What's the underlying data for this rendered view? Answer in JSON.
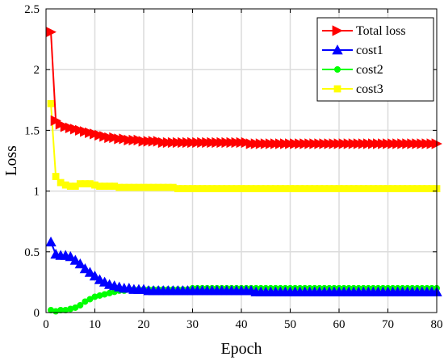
{
  "chart_data": {
    "type": "line",
    "xlabel": "Epoch",
    "ylabel": "Loss",
    "xlim": [
      0,
      80
    ],
    "ylim": [
      0,
      2.5
    ],
    "xticks": [
      "0",
      "10",
      "20",
      "30",
      "40",
      "50",
      "60",
      "70",
      "80"
    ],
    "yticks": [
      "0",
      "0.5",
      "1",
      "1.5",
      "2",
      "2.5"
    ],
    "grid": true,
    "legend_position": "top-right",
    "series": [
      {
        "name": "Total loss",
        "color": "#ff0000",
        "marker": "triangle-right",
        "x": [
          1,
          2,
          3,
          4,
          5,
          6,
          7,
          8,
          9,
          10,
          11,
          12,
          13,
          14,
          15,
          16,
          17,
          18,
          19,
          20,
          21,
          22,
          23,
          24,
          25,
          26,
          27,
          28,
          29,
          30,
          31,
          32,
          33,
          34,
          35,
          36,
          37,
          38,
          39,
          40,
          41,
          42,
          43,
          44,
          45,
          46,
          47,
          48,
          49,
          50,
          51,
          52,
          53,
          54,
          55,
          56,
          57,
          58,
          59,
          60,
          61,
          62,
          63,
          64,
          65,
          66,
          67,
          68,
          69,
          70,
          71,
          72,
          73,
          74,
          75,
          76,
          77,
          78,
          79,
          80
        ],
        "values": [
          2.31,
          1.58,
          1.55,
          1.53,
          1.52,
          1.51,
          1.5,
          1.49,
          1.48,
          1.47,
          1.46,
          1.45,
          1.44,
          1.44,
          1.43,
          1.43,
          1.42,
          1.42,
          1.42,
          1.41,
          1.41,
          1.41,
          1.41,
          1.4,
          1.4,
          1.4,
          1.4,
          1.4,
          1.4,
          1.4,
          1.4,
          1.4,
          1.4,
          1.4,
          1.4,
          1.4,
          1.4,
          1.4,
          1.4,
          1.4,
          1.4,
          1.39,
          1.39,
          1.39,
          1.39,
          1.39,
          1.39,
          1.39,
          1.39,
          1.39,
          1.39,
          1.39,
          1.39,
          1.39,
          1.39,
          1.39,
          1.39,
          1.39,
          1.39,
          1.39,
          1.39,
          1.39,
          1.39,
          1.39,
          1.39,
          1.39,
          1.39,
          1.39,
          1.39,
          1.39,
          1.39,
          1.39,
          1.39,
          1.39,
          1.39,
          1.39,
          1.39,
          1.39,
          1.39,
          1.39
        ]
      },
      {
        "name": "cost1",
        "color": "#0000ff",
        "marker": "triangle-up",
        "x": [
          1,
          2,
          3,
          4,
          5,
          6,
          7,
          8,
          9,
          10,
          11,
          12,
          13,
          14,
          15,
          16,
          17,
          18,
          19,
          20,
          21,
          22,
          23,
          24,
          25,
          26,
          27,
          28,
          29,
          30,
          31,
          32,
          33,
          34,
          35,
          36,
          37,
          38,
          39,
          40,
          41,
          42,
          43,
          44,
          45,
          46,
          47,
          48,
          49,
          50,
          51,
          52,
          53,
          54,
          55,
          56,
          57,
          58,
          59,
          60,
          61,
          62,
          63,
          64,
          65,
          66,
          67,
          68,
          69,
          70,
          71,
          72,
          73,
          74,
          75,
          76,
          77,
          78,
          79,
          80
        ],
        "values": [
          0.58,
          0.48,
          0.47,
          0.47,
          0.46,
          0.43,
          0.4,
          0.36,
          0.33,
          0.3,
          0.27,
          0.25,
          0.23,
          0.22,
          0.21,
          0.2,
          0.2,
          0.19,
          0.19,
          0.19,
          0.18,
          0.18,
          0.18,
          0.18,
          0.18,
          0.18,
          0.18,
          0.18,
          0.18,
          0.18,
          0.18,
          0.18,
          0.18,
          0.18,
          0.18,
          0.18,
          0.18,
          0.18,
          0.18,
          0.18,
          0.18,
          0.18,
          0.17,
          0.17,
          0.17,
          0.17,
          0.17,
          0.17,
          0.17,
          0.17,
          0.17,
          0.17,
          0.17,
          0.17,
          0.17,
          0.17,
          0.17,
          0.17,
          0.17,
          0.17,
          0.17,
          0.17,
          0.17,
          0.17,
          0.17,
          0.17,
          0.17,
          0.17,
          0.17,
          0.17,
          0.17,
          0.17,
          0.17,
          0.17,
          0.17,
          0.17,
          0.17,
          0.17,
          0.17,
          0.17
        ]
      },
      {
        "name": "cost2",
        "color": "#00ff00",
        "marker": "circle",
        "x": [
          1,
          2,
          3,
          4,
          5,
          6,
          7,
          8,
          9,
          10,
          11,
          12,
          13,
          14,
          15,
          16,
          17,
          18,
          19,
          20,
          21,
          22,
          23,
          24,
          25,
          26,
          27,
          28,
          29,
          30,
          31,
          32,
          33,
          34,
          35,
          36,
          37,
          38,
          39,
          40,
          41,
          42,
          43,
          44,
          45,
          46,
          47,
          48,
          49,
          50,
          51,
          52,
          53,
          54,
          55,
          56,
          57,
          58,
          59,
          60,
          61,
          62,
          63,
          64,
          65,
          66,
          67,
          68,
          69,
          70,
          71,
          72,
          73,
          74,
          75,
          76,
          77,
          78,
          79,
          80
        ],
        "values": [
          0.02,
          0.01,
          0.02,
          0.02,
          0.03,
          0.04,
          0.06,
          0.09,
          0.11,
          0.13,
          0.14,
          0.15,
          0.16,
          0.17,
          0.18,
          0.18,
          0.19,
          0.19,
          0.19,
          0.19,
          0.19,
          0.19,
          0.19,
          0.19,
          0.19,
          0.19,
          0.19,
          0.19,
          0.19,
          0.2,
          0.2,
          0.2,
          0.2,
          0.2,
          0.2,
          0.2,
          0.2,
          0.2,
          0.2,
          0.2,
          0.2,
          0.2,
          0.2,
          0.2,
          0.2,
          0.2,
          0.2,
          0.2,
          0.2,
          0.2,
          0.2,
          0.2,
          0.2,
          0.2,
          0.2,
          0.2,
          0.2,
          0.2,
          0.2,
          0.2,
          0.2,
          0.2,
          0.2,
          0.2,
          0.2,
          0.2,
          0.2,
          0.2,
          0.2,
          0.2,
          0.2,
          0.2,
          0.2,
          0.2,
          0.2,
          0.2,
          0.2,
          0.2,
          0.2,
          0.2
        ]
      },
      {
        "name": "cost3",
        "color": "#ffff00",
        "marker": "square",
        "x": [
          1,
          2,
          3,
          4,
          5,
          6,
          7,
          8,
          9,
          10,
          11,
          12,
          13,
          14,
          15,
          16,
          17,
          18,
          19,
          20,
          21,
          22,
          23,
          24,
          25,
          26,
          27,
          28,
          29,
          30,
          31,
          32,
          33,
          34,
          35,
          36,
          37,
          38,
          39,
          40,
          41,
          42,
          43,
          44,
          45,
          46,
          47,
          48,
          49,
          50,
          51,
          52,
          53,
          54,
          55,
          56,
          57,
          58,
          59,
          60,
          61,
          62,
          63,
          64,
          65,
          66,
          67,
          68,
          69,
          70,
          71,
          72,
          73,
          74,
          75,
          76,
          77,
          78,
          79,
          80
        ],
        "values": [
          1.72,
          1.12,
          1.07,
          1.05,
          1.04,
          1.04,
          1.06,
          1.06,
          1.06,
          1.05,
          1.04,
          1.04,
          1.04,
          1.04,
          1.03,
          1.03,
          1.03,
          1.03,
          1.03,
          1.03,
          1.03,
          1.03,
          1.03,
          1.03,
          1.03,
          1.03,
          1.02,
          1.02,
          1.02,
          1.02,
          1.02,
          1.02,
          1.02,
          1.02,
          1.02,
          1.02,
          1.02,
          1.02,
          1.02,
          1.02,
          1.02,
          1.02,
          1.02,
          1.02,
          1.02,
          1.02,
          1.02,
          1.02,
          1.02,
          1.02,
          1.02,
          1.02,
          1.02,
          1.02,
          1.02,
          1.02,
          1.02,
          1.02,
          1.02,
          1.02,
          1.02,
          1.02,
          1.02,
          1.02,
          1.02,
          1.02,
          1.02,
          1.02,
          1.02,
          1.02,
          1.02,
          1.02,
          1.02,
          1.02,
          1.02,
          1.02,
          1.02,
          1.02,
          1.02,
          1.02
        ]
      }
    ]
  }
}
